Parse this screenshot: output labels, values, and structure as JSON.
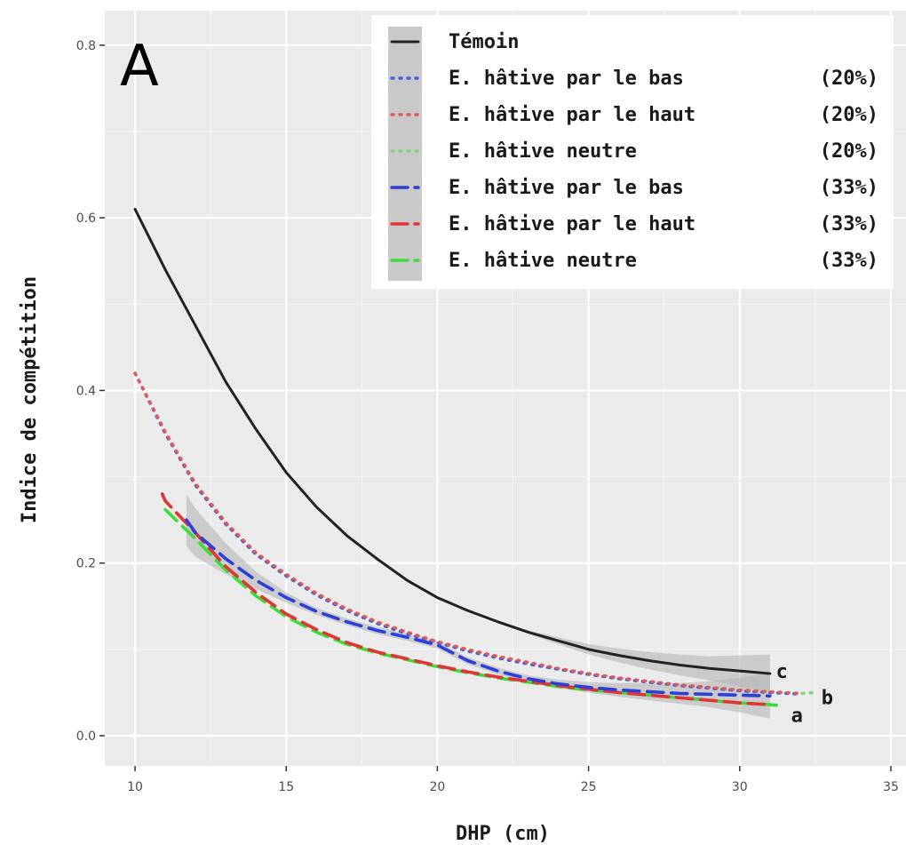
{
  "chart_data": {
    "type": "line",
    "panel_label": "A",
    "xlabel": "DHP (cm)",
    "ylabel": "Indice de compétition",
    "xlim": [
      9,
      35.5
    ],
    "ylim": [
      -0.035,
      0.84
    ],
    "x_ticks": [
      10,
      15,
      20,
      25,
      30,
      35
    ],
    "y_ticks": [
      0.0,
      0.2,
      0.4,
      0.6,
      0.8
    ],
    "y_tick_labels": [
      "0.0",
      "0.2",
      "0.4",
      "0.6",
      "0.8"
    ],
    "grid": true,
    "background": "#ebebeb",
    "legend_position": "top-right",
    "series": [
      {
        "name": "Témoin",
        "pct": "",
        "color": "#222222",
        "style": "solid",
        "x": [
          10,
          11,
          12,
          13,
          14,
          15,
          16,
          17,
          18,
          19,
          20,
          21,
          22,
          23,
          24,
          25,
          26,
          27,
          28,
          29,
          30,
          31
        ],
        "y": [
          0.61,
          0.54,
          0.475,
          0.41,
          0.355,
          0.305,
          0.265,
          0.232,
          0.205,
          0.18,
          0.16,
          0.145,
          0.132,
          0.12,
          0.11,
          0.1,
          0.093,
          0.087,
          0.082,
          0.078,
          0.075,
          0.072
        ],
        "band": [
          0.0,
          0.0,
          0.0,
          0.0,
          0.0,
          0.0,
          0.0,
          0.0,
          0.0,
          0.0,
          0.0,
          0.0,
          0.0,
          0.002,
          0.004,
          0.006,
          0.008,
          0.01,
          0.012,
          0.014,
          0.018,
          0.022
        ]
      },
      {
        "name": "E. hâtive par le bas",
        "pct": "(20%)",
        "color": "#4a5fd6",
        "style": "dotted",
        "x": [
          10,
          11,
          12,
          13,
          14,
          15,
          16,
          17,
          18,
          19,
          20,
          21,
          22,
          23,
          24,
          25,
          26,
          27,
          28,
          29,
          30,
          31,
          32
        ],
        "y": [
          0.42,
          0.35,
          0.29,
          0.245,
          0.21,
          0.185,
          0.163,
          0.145,
          0.13,
          0.118,
          0.108,
          0.098,
          0.09,
          0.083,
          0.077,
          0.071,
          0.066,
          0.062,
          0.058,
          0.055,
          0.052,
          0.05,
          0.048
        ]
      },
      {
        "name": "E. hâtive par le haut",
        "pct": "(20%)",
        "color": "#e05a5a",
        "style": "dotted",
        "x": [
          10,
          11,
          12,
          13,
          14,
          15,
          16,
          17,
          18,
          19,
          20,
          21,
          22,
          23,
          24,
          25,
          26,
          27,
          28,
          29,
          30,
          31,
          32
        ],
        "y": [
          0.42,
          0.352,
          0.292,
          0.247,
          0.212,
          0.187,
          0.165,
          0.147,
          0.132,
          0.12,
          0.109,
          0.1,
          0.092,
          0.085,
          0.078,
          0.072,
          0.067,
          0.063,
          0.059,
          0.056,
          0.053,
          0.051,
          0.049
        ]
      },
      {
        "name": "E. hâtive neutre",
        "pct": "(20%)",
        "color": "#7fd67f",
        "style": "dotted",
        "x": [
          10,
          11,
          12,
          13,
          14,
          15,
          16,
          17,
          18,
          19,
          20,
          21,
          22,
          23,
          24,
          25,
          26,
          27,
          28,
          29,
          30,
          31,
          32,
          32.5
        ],
        "y": [
          0.42,
          0.35,
          0.29,
          0.245,
          0.21,
          0.185,
          0.164,
          0.146,
          0.131,
          0.119,
          0.108,
          0.099,
          0.091,
          0.084,
          0.077,
          0.071,
          0.066,
          0.062,
          0.058,
          0.055,
          0.052,
          0.05,
          0.049,
          0.05
        ]
      },
      {
        "name": "E. hâtive par le bas",
        "pct": "(33%)",
        "color": "#2c3fd8",
        "style": "dashed",
        "x": [
          11.7,
          12,
          13,
          14,
          15,
          16,
          17,
          18,
          19,
          20,
          21,
          22,
          23,
          24,
          25,
          26,
          27,
          28,
          29,
          30,
          31
        ],
        "y": [
          0.25,
          0.235,
          0.205,
          0.18,
          0.16,
          0.144,
          0.132,
          0.122,
          0.114,
          0.105,
          0.087,
          0.075,
          0.066,
          0.06,
          0.056,
          0.053,
          0.051,
          0.049,
          0.048,
          0.047,
          0.046
        ],
        "band": [
          0.03,
          0.028,
          0.018,
          0.01,
          0.006,
          0.004,
          0.004,
          0.004,
          0.004,
          0.004,
          0.004,
          0.004,
          0.004,
          0.005,
          0.006,
          0.008,
          0.01,
          0.012,
          0.015,
          0.02,
          0.026
        ]
      },
      {
        "name": "E. hâtive par le haut",
        "pct": "(33%)",
        "color": "#e03535",
        "style": "dashed",
        "x": [
          10.9,
          11,
          12,
          13,
          14,
          15,
          16,
          17,
          18,
          19,
          20,
          21,
          22,
          23,
          24,
          25,
          26,
          27,
          28,
          29,
          30,
          31
        ],
        "y": [
          0.28,
          0.272,
          0.235,
          0.196,
          0.166,
          0.141,
          0.123,
          0.108,
          0.097,
          0.089,
          0.081,
          0.074,
          0.068,
          0.063,
          0.058,
          0.054,
          0.05,
          0.047,
          0.044,
          0.041,
          0.038,
          0.036
        ]
      },
      {
        "name": "E. hâtive neutre",
        "pct": "(33%)",
        "color": "#3ddc3d",
        "style": "dashed",
        "x": [
          11,
          12,
          13,
          14,
          15,
          16,
          17,
          18,
          19,
          20,
          21,
          22,
          23,
          24,
          25,
          26,
          27,
          28,
          29,
          30,
          31,
          31.3
        ],
        "y": [
          0.262,
          0.228,
          0.192,
          0.162,
          0.138,
          0.12,
          0.106,
          0.096,
          0.088,
          0.08,
          0.073,
          0.067,
          0.062,
          0.057,
          0.053,
          0.05,
          0.047,
          0.044,
          0.041,
          0.038,
          0.036,
          0.035
        ]
      }
    ],
    "annotations": [
      {
        "text": "c",
        "x": 31.2,
        "y": 0.075
      },
      {
        "text": "b",
        "x": 32.7,
        "y": 0.045
      },
      {
        "text": "a",
        "x": 31.7,
        "y": 0.024
      }
    ]
  }
}
